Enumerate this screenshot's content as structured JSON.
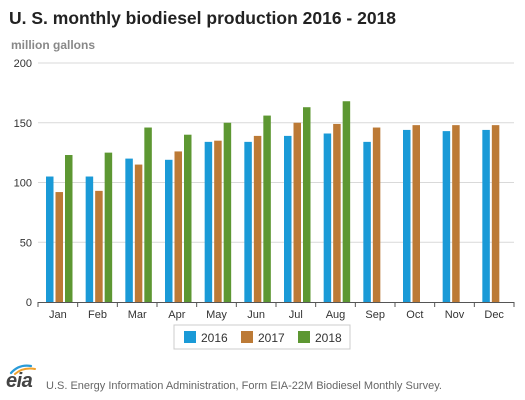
{
  "chart_data": {
    "type": "bar",
    "title": "U. S. monthly biodiesel production 2016 - 2018",
    "ylabel": "million gallons",
    "xlabel": "",
    "categories": [
      "Jan",
      "Feb",
      "Mar",
      "Apr",
      "May",
      "Jun",
      "Jul",
      "Aug",
      "Sep",
      "Oct",
      "Nov",
      "Dec"
    ],
    "series": [
      {
        "name": "2016",
        "color": "#1a9ad7",
        "values": [
          105,
          105,
          120,
          119,
          134,
          134,
          139,
          141,
          134,
          144,
          143,
          144
        ]
      },
      {
        "name": "2017",
        "color": "#bc7a36",
        "values": [
          92,
          93,
          115,
          126,
          135,
          139,
          150,
          149,
          146,
          148,
          148,
          148
        ]
      },
      {
        "name": "2018",
        "color": "#5d9732",
        "values": [
          123,
          125,
          146,
          140,
          150,
          156,
          163,
          168,
          null,
          null,
          null,
          null
        ]
      }
    ],
    "ylim": [
      0,
      200
    ],
    "yticks": [
      0,
      50,
      100,
      150,
      200
    ],
    "grid": "horizontal",
    "legend_position": "bottom-center"
  },
  "footer": {
    "logo_text": "eia",
    "source": "U.S. Energy Information Administration, Form EIA-22M Biodiesel Monthly Survey."
  }
}
